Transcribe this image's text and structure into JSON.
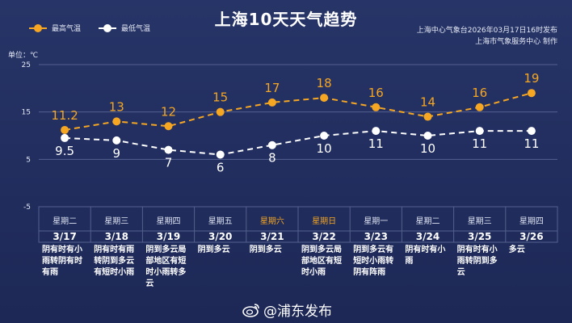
{
  "title": "上海10天天气趋势",
  "publisher_line1": "上海中心气象台2026年03月17日16时发布",
  "publisher_line2": "上海市气象服务中心 制作",
  "watermark": "@浦东发布",
  "colors": {
    "high": "#f5a623",
    "low": "#ffffff",
    "weekend": "#f5a623"
  },
  "chart_data": {
    "type": "line",
    "title": "上海10天天气趋势",
    "unit_label": "单位：℃",
    "ylim": [
      -5,
      25
    ],
    "yticks": [
      25,
      15,
      5,
      -5
    ],
    "legend_position": "top-left",
    "categories": [
      "3/17",
      "3/18",
      "3/19",
      "3/20",
      "3/21",
      "3/22",
      "3/23",
      "3/24",
      "3/25",
      "3/26"
    ],
    "weekdays": [
      "星期二",
      "星期三",
      "星期四",
      "星期五",
      "星期六",
      "星期日",
      "星期一",
      "星期二",
      "星期三",
      "星期四"
    ],
    "weekend": [
      false,
      false,
      false,
      false,
      true,
      true,
      false,
      false,
      false,
      false
    ],
    "descriptions": [
      "阴有时有小雨转阴有时有雨",
      "阴有时有雨转阴到多云有短时小雨",
      "阴到多云局部地区有短时小雨转多云",
      "阴到多云",
      "阴到多云",
      "阴到多云局部地区有短时小雨",
      "阴到多云有短时小雨转阴有阵雨",
      "阴有时有小雨",
      "阴有时有小雨转阴到多云",
      "多云"
    ],
    "series": [
      {
        "name": "最高气温",
        "values": [
          11.2,
          13,
          12,
          15,
          17,
          18,
          16,
          14,
          16,
          19
        ],
        "labels": [
          "11.2",
          "13",
          "12",
          "15",
          "17",
          "18",
          "16",
          "14",
          "16",
          "19"
        ]
      },
      {
        "name": "最低气温",
        "values": [
          9.5,
          9,
          7,
          6,
          8,
          10,
          11,
          10,
          11,
          11
        ],
        "labels": [
          "9.5",
          "9",
          "7",
          "6",
          "8",
          "10",
          "11",
          "10",
          "11",
          "11"
        ]
      }
    ]
  }
}
